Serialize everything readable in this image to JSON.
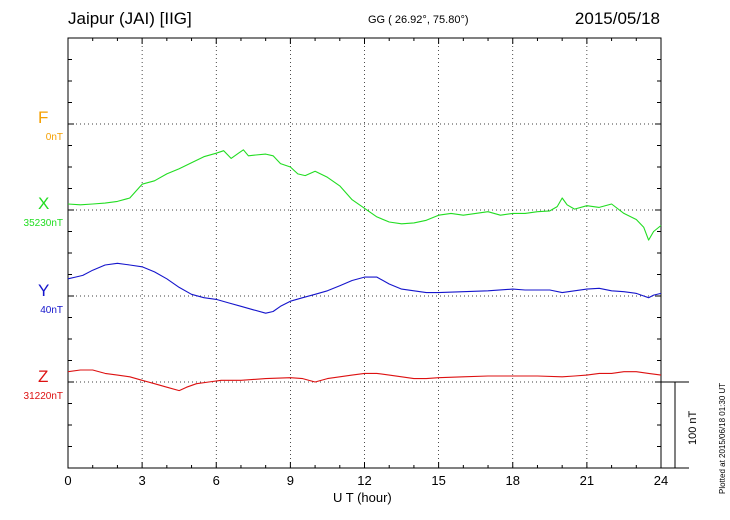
{
  "header": {
    "station": "Jaipur (JAI)  [IIG]",
    "coords": "GG ( 26.92°,  75.80°)",
    "date": "2015/05/18"
  },
  "side_note": "Plotted at 2015/06/18 01:30 UT",
  "scale_label": "100 nT",
  "chart_data": {
    "type": "line",
    "xlabel": "U T (hour)",
    "xlim": [
      0,
      24
    ],
    "xticks": [
      "0",
      "3",
      "6",
      "9",
      "12",
      "15",
      "18",
      "21",
      "24"
    ],
    "scale_nT": 100,
    "grid": true,
    "components": [
      {
        "name": "F",
        "baseline_label": "0nT",
        "color": "#f5a000",
        "data": []
      },
      {
        "name": "X",
        "baseline_label": "35230nT",
        "color": "#22dd22",
        "data": [
          [
            0,
            7
          ],
          [
            0.5,
            6
          ],
          [
            1,
            7
          ],
          [
            1.5,
            8
          ],
          [
            2,
            10
          ],
          [
            2.5,
            14
          ],
          [
            3,
            30
          ],
          [
            3.5,
            34
          ],
          [
            4,
            42
          ],
          [
            4.5,
            48
          ],
          [
            5,
            55
          ],
          [
            5.5,
            62
          ],
          [
            6,
            66
          ],
          [
            6.3,
            69
          ],
          [
            6.6,
            60
          ],
          [
            6.9,
            66
          ],
          [
            7.1,
            70
          ],
          [
            7.3,
            63
          ],
          [
            7.6,
            64
          ],
          [
            8,
            65
          ],
          [
            8.3,
            63
          ],
          [
            8.6,
            54
          ],
          [
            9,
            50
          ],
          [
            9.3,
            42
          ],
          [
            9.6,
            40
          ],
          [
            10,
            45
          ],
          [
            10.5,
            38
          ],
          [
            11,
            28
          ],
          [
            11.5,
            12
          ],
          [
            12,
            2
          ],
          [
            12.5,
            -8
          ],
          [
            13,
            -14
          ],
          [
            13.5,
            -16
          ],
          [
            14,
            -15
          ],
          [
            14.5,
            -12
          ],
          [
            15,
            -6
          ],
          [
            15.5,
            -4
          ],
          [
            16,
            -6
          ],
          [
            16.5,
            -4
          ],
          [
            17,
            -2
          ],
          [
            17.5,
            -6
          ],
          [
            18,
            -4
          ],
          [
            18.5,
            -4
          ],
          [
            19,
            -2
          ],
          [
            19.5,
            -1
          ],
          [
            19.8,
            4
          ],
          [
            20,
            14
          ],
          [
            20.2,
            6
          ],
          [
            20.5,
            1
          ],
          [
            21,
            5
          ],
          [
            21.5,
            3
          ],
          [
            22,
            7
          ],
          [
            22.5,
            -4
          ],
          [
            23,
            -11
          ],
          [
            23.3,
            -20
          ],
          [
            23.5,
            -35
          ],
          [
            23.7,
            -25
          ],
          [
            24,
            -18
          ]
        ]
      },
      {
        "name": "Y",
        "baseline_label": "40nT",
        "color": "#1515cc",
        "data": [
          [
            0,
            20
          ],
          [
            0.3,
            22
          ],
          [
            0.6,
            24
          ],
          [
            1,
            30
          ],
          [
            1.5,
            36
          ],
          [
            2,
            38
          ],
          [
            2.5,
            36
          ],
          [
            3,
            34
          ],
          [
            3.5,
            28
          ],
          [
            4,
            20
          ],
          [
            4.5,
            10
          ],
          [
            5,
            2
          ],
          [
            5.5,
            -2
          ],
          [
            6,
            -4
          ],
          [
            6.5,
            -8
          ],
          [
            7,
            -12
          ],
          [
            7.5,
            -16
          ],
          [
            8,
            -20
          ],
          [
            8.3,
            -18
          ],
          [
            8.6,
            -12
          ],
          [
            9,
            -6
          ],
          [
            9.5,
            -2
          ],
          [
            10,
            2
          ],
          [
            10.5,
            6
          ],
          [
            11,
            12
          ],
          [
            11.5,
            18
          ],
          [
            12,
            22
          ],
          [
            12.5,
            22
          ],
          [
            13,
            14
          ],
          [
            13.5,
            8
          ],
          [
            14,
            6
          ],
          [
            14.5,
            4
          ],
          [
            15,
            4
          ],
          [
            16,
            5
          ],
          [
            17,
            6
          ],
          [
            18,
            8
          ],
          [
            18.5,
            7
          ],
          [
            19,
            7
          ],
          [
            19.5,
            7
          ],
          [
            20,
            4
          ],
          [
            20.5,
            6
          ],
          [
            21,
            8
          ],
          [
            21.5,
            9
          ],
          [
            22,
            6
          ],
          [
            22.5,
            5
          ],
          [
            23,
            3
          ],
          [
            23.3,
            0
          ],
          [
            23.5,
            -2
          ],
          [
            23.7,
            1
          ],
          [
            24,
            3
          ]
        ]
      },
      {
        "name": "Z",
        "baseline_label": "31220nT",
        "color": "#dd1111",
        "data": [
          [
            0,
            12
          ],
          [
            0.5,
            14
          ],
          [
            1,
            14
          ],
          [
            1.5,
            10
          ],
          [
            2,
            8
          ],
          [
            2.5,
            6
          ],
          [
            3,
            2
          ],
          [
            3.5,
            -2
          ],
          [
            4,
            -6
          ],
          [
            4.5,
            -10
          ],
          [
            4.8,
            -6
          ],
          [
            5.2,
            -2
          ],
          [
            5.7,
            0
          ],
          [
            6.2,
            2
          ],
          [
            7,
            2
          ],
          [
            8,
            4
          ],
          [
            9,
            5
          ],
          [
            9.5,
            4
          ],
          [
            10,
            0
          ],
          [
            10.5,
            4
          ],
          [
            11,
            6
          ],
          [
            11.5,
            8
          ],
          [
            12,
            10
          ],
          [
            12.5,
            10
          ],
          [
            13,
            8
          ],
          [
            13.5,
            6
          ],
          [
            14,
            4
          ],
          [
            14.5,
            4
          ],
          [
            15,
            5
          ],
          [
            16,
            6
          ],
          [
            17,
            7
          ],
          [
            18,
            7
          ],
          [
            19,
            7
          ],
          [
            20,
            6
          ],
          [
            20.5,
            7
          ],
          [
            21,
            8
          ],
          [
            21.5,
            10
          ],
          [
            22,
            10
          ],
          [
            22.5,
            12
          ],
          [
            23,
            12
          ],
          [
            23.5,
            10
          ],
          [
            24,
            8
          ]
        ]
      }
    ]
  }
}
